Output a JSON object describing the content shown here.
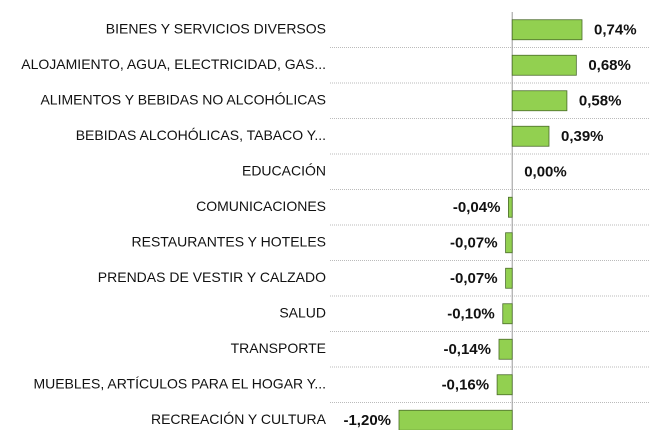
{
  "chart_data": {
    "type": "bar",
    "orientation": "horizontal",
    "categories": [
      "BIENES Y SERVICIOS DIVERSOS",
      "ALOJAMIENTO, AGUA, ELECTRICIDAD, GAS...",
      "ALIMENTOS Y BEBIDAS NO ALCOHÓLICAS",
      "BEBIDAS ALCOHÓLICAS, TABACO Y...",
      "EDUCACIÓN",
      "COMUNICACIONES",
      "RESTAURANTES Y HOTELES",
      "PRENDAS DE VESTIR Y CALZADO",
      "SALUD",
      "TRANSPORTE",
      "MUEBLES, ARTÍCULOS PARA EL HOGAR Y...",
      "RECREACIÓN Y CULTURA"
    ],
    "values": [
      0.74,
      0.68,
      0.58,
      0.39,
      0.0,
      -0.04,
      -0.07,
      -0.07,
      -0.1,
      -0.14,
      -0.16,
      -1.2
    ],
    "value_labels": [
      "0,74%",
      "0,68%",
      "0,58%",
      "0,39%",
      "0,00%",
      "-0,04%",
      "-0,07%",
      "-0,07%",
      "-0,10%",
      "-0,14%",
      "-0,16%",
      "-1,20%"
    ],
    "color": "#92d050"
  }
}
